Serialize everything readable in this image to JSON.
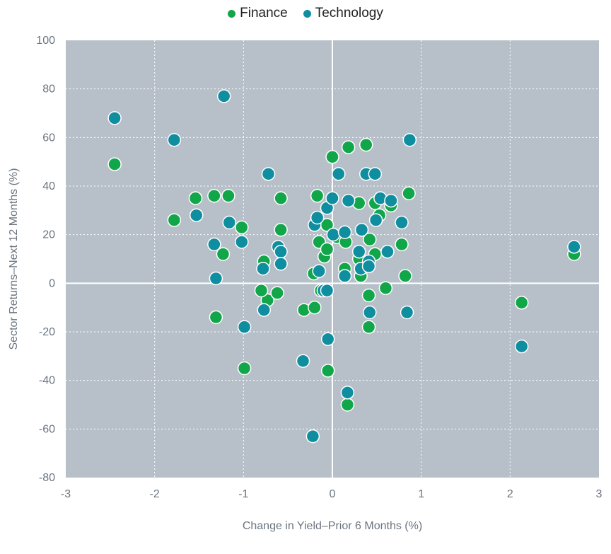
{
  "chart_data": {
    "type": "scatter",
    "title": "",
    "xlabel": "Change in Yield–Prior 6 Months (%)",
    "ylabel": "Sector Returns–Next 12 Months (%)",
    "xlim": [
      -3,
      3
    ],
    "ylim": [
      -80,
      100
    ],
    "xticks": [
      -3,
      -2,
      -1,
      0,
      1,
      2,
      3
    ],
    "yticks": [
      -80,
      -60,
      -40,
      -20,
      0,
      20,
      40,
      60,
      80,
      100
    ],
    "grid": true,
    "legend_position": "top-center",
    "series": [
      {
        "name": "Finance",
        "color": "#12a64a",
        "points": [
          [
            -2.45,
            49
          ],
          [
            -1.78,
            26
          ],
          [
            -1.54,
            35
          ],
          [
            -1.33,
            36
          ],
          [
            -1.17,
            36
          ],
          [
            -1.23,
            12
          ],
          [
            -1.02,
            23
          ],
          [
            -1.31,
            -14
          ],
          [
            -0.99,
            -35
          ],
          [
            -0.58,
            35
          ],
          [
            -0.58,
            22
          ],
          [
            -0.77,
            9
          ],
          [
            -0.73,
            -7
          ],
          [
            -0.8,
            -3
          ],
          [
            -0.62,
            -4
          ],
          [
            -0.32,
            -11
          ],
          [
            -0.2,
            -10
          ],
          [
            -0.21,
            4
          ],
          [
            -0.17,
            36
          ],
          [
            -0.15,
            17
          ],
          [
            -0.06,
            24
          ],
          [
            -0.09,
            11
          ],
          [
            -0.06,
            14
          ],
          [
            -0.13,
            -3
          ],
          [
            -0.05,
            -36
          ],
          [
            0.0,
            52
          ],
          [
            0.05,
            19
          ],
          [
            0.18,
            56
          ],
          [
            0.15,
            17
          ],
          [
            0.14,
            6
          ],
          [
            0.3,
            33
          ],
          [
            0.3,
            10
          ],
          [
            0.32,
            3
          ],
          [
            0.38,
            57
          ],
          [
            0.42,
            18
          ],
          [
            0.41,
            -5
          ],
          [
            0.41,
            -18
          ],
          [
            0.17,
            -50
          ],
          [
            0.48,
            33
          ],
          [
            0.48,
            12
          ],
          [
            0.53,
            28
          ],
          [
            0.66,
            32
          ],
          [
            0.78,
            16
          ],
          [
            0.6,
            -2
          ],
          [
            0.82,
            3
          ],
          [
            0.86,
            37
          ],
          [
            2.13,
            -8
          ],
          [
            2.72,
            12
          ]
        ]
      },
      {
        "name": "Technology",
        "color": "#0f8ea0",
        "points": [
          [
            -2.45,
            68
          ],
          [
            -1.78,
            59
          ],
          [
            -1.53,
            28
          ],
          [
            -1.33,
            16
          ],
          [
            -1.31,
            2
          ],
          [
            -1.22,
            77
          ],
          [
            -1.16,
            25
          ],
          [
            -1.02,
            17
          ],
          [
            -0.99,
            -18
          ],
          [
            -0.72,
            45
          ],
          [
            -0.61,
            15
          ],
          [
            -0.58,
            13
          ],
          [
            -0.58,
            8
          ],
          [
            -0.78,
            6
          ],
          [
            -0.77,
            -11
          ],
          [
            -0.33,
            -32
          ],
          [
            -0.22,
            -63
          ],
          [
            -0.2,
            24
          ],
          [
            -0.17,
            27
          ],
          [
            -0.15,
            5
          ],
          [
            -0.1,
            -3
          ],
          [
            -0.06,
            31
          ],
          [
            -0.06,
            -3
          ],
          [
            -0.05,
            -23
          ],
          [
            0.0,
            35
          ],
          [
            0.01,
            20
          ],
          [
            0.07,
            45
          ],
          [
            0.14,
            21
          ],
          [
            0.14,
            3
          ],
          [
            0.18,
            34
          ],
          [
            0.17,
            -45
          ],
          [
            0.3,
            13
          ],
          [
            0.32,
            6
          ],
          [
            0.33,
            22
          ],
          [
            0.38,
            45
          ],
          [
            0.41,
            9
          ],
          [
            0.41,
            7
          ],
          [
            0.42,
            -12
          ],
          [
            0.48,
            45
          ],
          [
            0.49,
            26
          ],
          [
            0.54,
            35
          ],
          [
            0.62,
            13
          ],
          [
            0.66,
            34
          ],
          [
            0.78,
            25
          ],
          [
            0.84,
            -12
          ],
          [
            0.87,
            59
          ],
          [
            2.13,
            -26
          ],
          [
            2.72,
            15
          ]
        ]
      }
    ]
  }
}
